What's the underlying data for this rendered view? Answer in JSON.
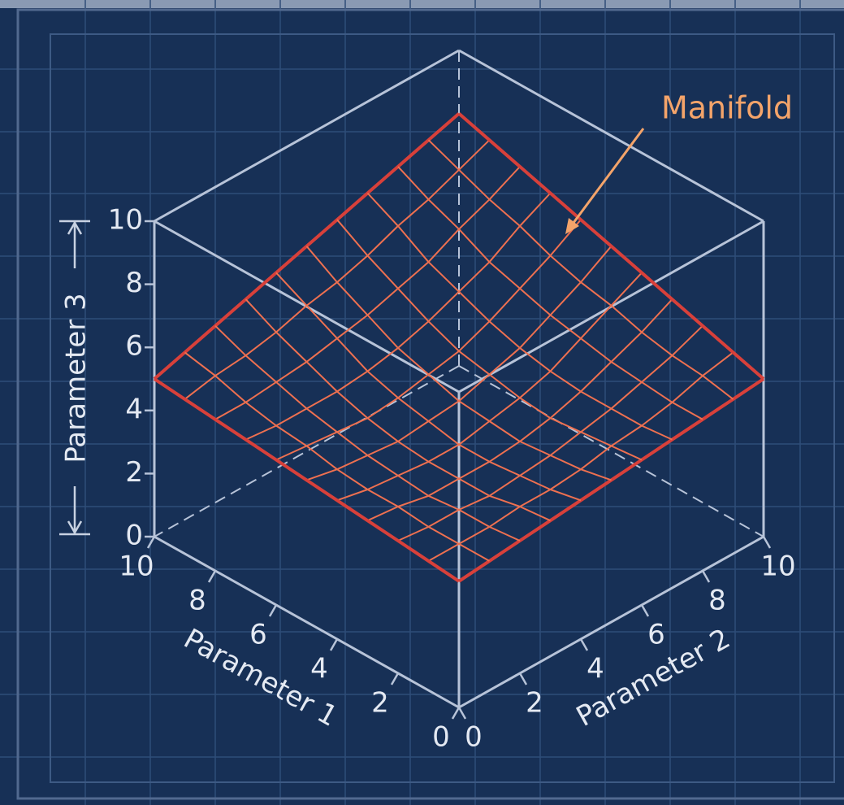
{
  "chart_data": {
    "type": "surface",
    "annotation": "Manifold",
    "xlabel": "Parameter 1",
    "ylabel": "Parameter 2",
    "zlabel": "Parameter 3",
    "xlim": [
      0,
      10
    ],
    "ylim": [
      0,
      10
    ],
    "zlim": [
      0,
      10
    ],
    "xticks": [
      0,
      2,
      4,
      6,
      8,
      10
    ],
    "yticks": [
      0,
      2,
      4,
      6,
      8,
      10
    ],
    "zticks": [
      0,
      2,
      4,
      6,
      8,
      10
    ],
    "color": "#ee7050",
    "edge_color": "#d8403a",
    "x": [
      0,
      1,
      2,
      3,
      4,
      5,
      6,
      7,
      8,
      9,
      10
    ],
    "y": [
      0,
      1,
      2,
      3,
      4,
      5,
      6,
      7,
      8,
      9,
      10
    ],
    "z": [
      [
        4.0,
        4.1,
        4.2,
        4.3,
        4.4,
        4.5,
        4.6,
        4.7,
        4.8,
        4.9,
        5.0
      ],
      [
        4.1,
        4.1,
        4.1,
        4.2,
        4.2,
        4.3,
        4.5,
        4.6,
        4.8,
        5.1,
        5.3
      ],
      [
        4.2,
        4.1,
        4.1,
        4.0,
        4.1,
        4.2,
        4.4,
        4.6,
        4.9,
        5.2,
        5.6
      ],
      [
        4.3,
        4.2,
        4.0,
        4.0,
        4.0,
        4.1,
        4.3,
        4.6,
        5.0,
        5.4,
        5.9
      ],
      [
        4.4,
        4.2,
        4.1,
        4.0,
        4.0,
        4.2,
        4.4,
        4.7,
        5.2,
        5.7,
        6.2
      ],
      [
        4.5,
        4.3,
        4.2,
        4.1,
        4.2,
        4.3,
        4.6,
        4.9,
        5.4,
        5.9,
        6.5
      ],
      [
        4.6,
        4.5,
        4.4,
        4.3,
        4.4,
        4.6,
        4.8,
        5.2,
        5.7,
        6.2,
        6.8
      ],
      [
        4.7,
        4.6,
        4.6,
        4.6,
        4.7,
        4.9,
        5.2,
        5.6,
        6.0,
        6.6,
        7.1
      ],
      [
        4.8,
        4.8,
        4.9,
        5.0,
        5.2,
        5.4,
        5.7,
        6.0,
        6.5,
        6.9,
        7.4
      ],
      [
        4.9,
        5.1,
        5.2,
        5.4,
        5.7,
        5.9,
        6.2,
        6.6,
        6.9,
        7.3,
        7.7
      ],
      [
        5.0,
        5.3,
        5.6,
        5.9,
        6.2,
        6.5,
        6.8,
        7.1,
        7.4,
        7.7,
        8.0
      ]
    ]
  }
}
